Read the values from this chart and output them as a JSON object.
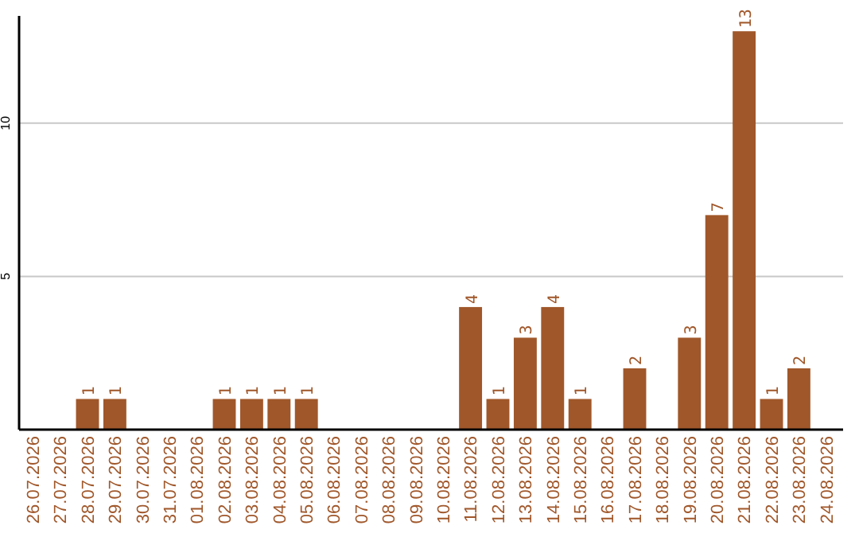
{
  "chart_data": {
    "type": "bar",
    "categories": [
      "26.07.2026",
      "27.07.2026",
      "28.07.2026",
      "29.07.2026",
      "30.07.2026",
      "31.07.2026",
      "01.08.2026",
      "02.08.2026",
      "03.08.2026",
      "04.08.2026",
      "05.08.2026",
      "06.08.2026",
      "07.08.2026",
      "08.08.2026",
      "09.08.2026",
      "10.08.2026",
      "11.08.2026",
      "12.08.2026",
      "13.08.2026",
      "14.08.2026",
      "15.08.2026",
      "16.08.2026",
      "17.08.2026",
      "18.08.2026",
      "19.08.2026",
      "20.08.2026",
      "21.08.2026",
      "22.08.2026",
      "23.08.2026",
      "24.08.2026"
    ],
    "values": [
      0,
      0,
      1,
      1,
      0,
      0,
      0,
      1,
      1,
      1,
      1,
      0,
      0,
      0,
      0,
      0,
      4,
      1,
      3,
      4,
      1,
      0,
      2,
      0,
      3,
      7,
      13,
      1,
      2,
      0
    ],
    "value_labels": [
      null,
      null,
      "1",
      "1",
      null,
      null,
      null,
      "1",
      "1",
      "1",
      "1",
      null,
      null,
      null,
      null,
      null,
      "4",
      "1",
      "3",
      "4",
      "1",
      null,
      "2",
      null,
      "3",
      "7",
      "13",
      "1",
      "2",
      null
    ],
    "color": "#a0572a",
    "ylim": [
      0,
      13.5
    ],
    "yticks": [
      5,
      10
    ],
    "grid": "y"
  }
}
